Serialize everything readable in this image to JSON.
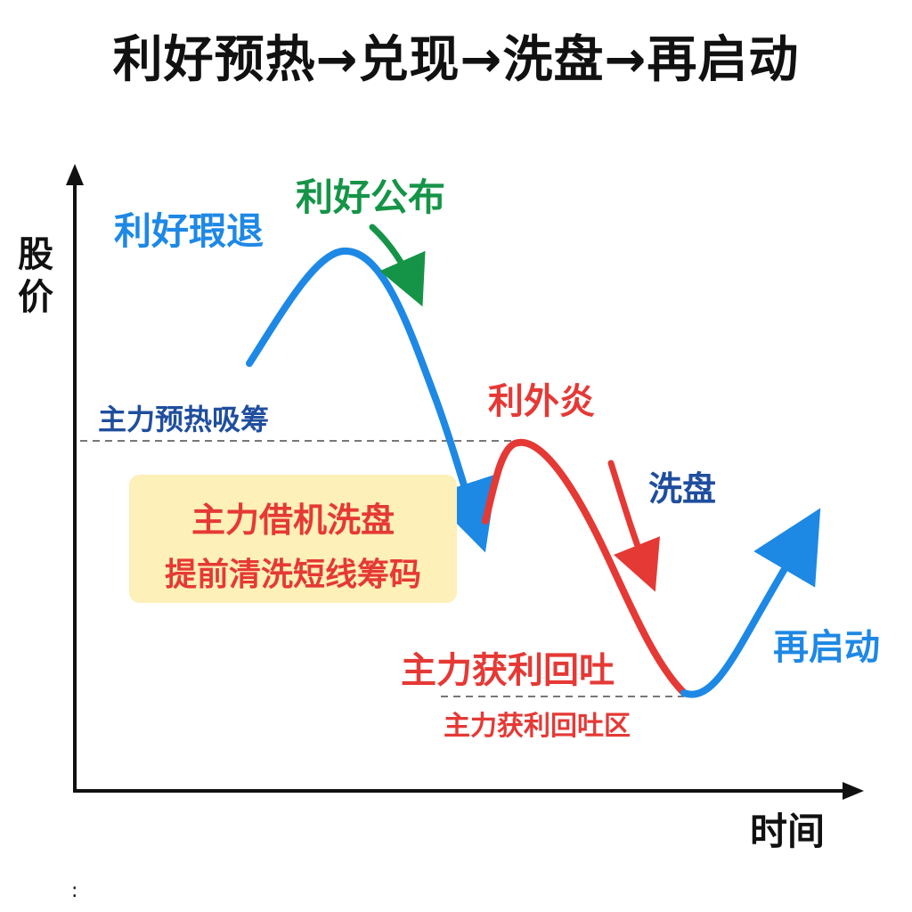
{
  "title": "利好预热→兑现→洗盘→再启动",
  "axes": {
    "y_label": "股价",
    "x_label": "时间"
  },
  "labels": {
    "pre_rise": "利好瑕退",
    "announce": "利好公布",
    "preheat_absorb": "主力预热吸筹",
    "reversal": "利外炎",
    "washout": "洗盘",
    "profit_take": "主力获利回吐",
    "profit_zone": "主力获利回吐区",
    "restart": "再启动"
  },
  "callout": {
    "line1": "主力借机洗盘",
    "line2": "提前清洗短线筹码"
  },
  "footer_mark": ":",
  "colors": {
    "blue": "#1e88e5",
    "red": "#e53935",
    "green": "#159447",
    "navy": "#1f4e9e",
    "dashed": "#777777",
    "callout_bg": "#fdf0b8",
    "text": "#111111"
  }
}
